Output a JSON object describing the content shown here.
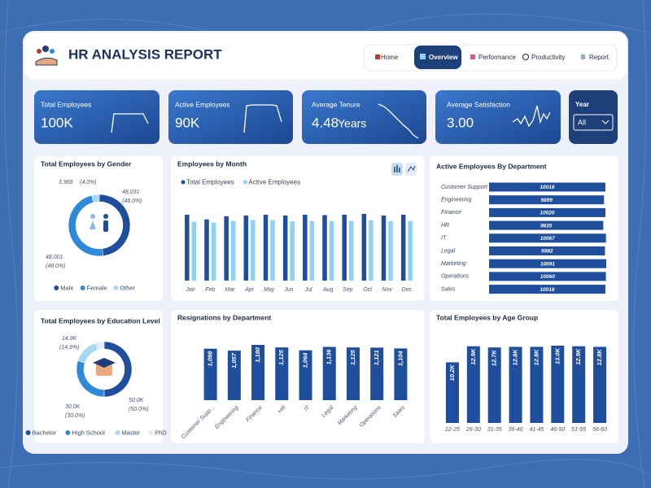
{
  "header": {
    "title": "HR ANALYSIS REPORT"
  },
  "nav": [
    "Home",
    "Overview",
    "Performance",
    "Productivity",
    "Report"
  ],
  "kpis": [
    {
      "label": "Total Employees",
      "value": "100K"
    },
    {
      "label": "Active Employees",
      "value": "90K"
    },
    {
      "label": "Average Tenure",
      "value": "4.48",
      "unit": "Years"
    },
    {
      "label": "Average Satisfaction",
      "value": "3.00"
    }
  ],
  "year_filter": {
    "label": "Year",
    "value": "All"
  },
  "chart_data": [
    {
      "type": "donut",
      "title": "Total Employees by Gender",
      "categories": [
        "Male",
        "Female",
        "Other"
      ],
      "values": [
        48031,
        48001,
        3968
      ],
      "value_labels": [
        "48,031",
        "48,001",
        "3,968"
      ],
      "percent_labels": [
        "(48.0%)",
        "(48.0%)",
        "(4.0%)"
      ],
      "colors": [
        "#1f4e9c",
        "#2e8ad8",
        "#a9d6f5"
      ],
      "legend": "bottom"
    },
    {
      "type": "bar",
      "title": "Employees by Month",
      "categories": [
        "Jan",
        "Feb",
        "Mar",
        "Apr",
        "May",
        "Jun",
        "Jul",
        "Aug",
        "Sep",
        "Oct",
        "Nov",
        "Dec"
      ],
      "series": [
        {
          "name": "Total Employees",
          "color": "#1f4e9c",
          "values": [
            8400,
            7800,
            8200,
            8300,
            8400,
            8300,
            8400,
            8350,
            8400,
            8500,
            8300,
            8400
          ]
        },
        {
          "name": "Active Employees",
          "color": "#8fd0f5",
          "values": [
            7500,
            7400,
            7600,
            7700,
            7700,
            7550,
            7600,
            7600,
            7600,
            7700,
            7600,
            7600
          ]
        }
      ],
      "legend": "top"
    },
    {
      "type": "barh",
      "title": "Active Employees By Department",
      "categories": [
        "Customer Support",
        "Engineering",
        "Finance",
        "HR",
        "IT",
        "Legal",
        "Marketing",
        "Operations",
        "Sales"
      ],
      "values": [
        10018,
        9899,
        10020,
        9835,
        10067,
        9982,
        10091,
        10060,
        10018
      ],
      "color": "#1f4e9c"
    },
    {
      "type": "donut",
      "title": "Total Employees by Education Level",
      "categories": [
        "Bachelor",
        "High School",
        "Master",
        "PhD"
      ],
      "values": [
        50000,
        30000,
        14900,
        5100
      ],
      "value_labels": [
        "50.0K",
        "30.0K",
        "14.9K",
        null
      ],
      "percent_labels": [
        "(50.0%)",
        "(30.0%)",
        "(14.9%)",
        null
      ],
      "colors": [
        "#1f4e9c",
        "#2e8ad8",
        "#a9d6f5",
        "#e4ecf7"
      ],
      "legend": "bottom"
    },
    {
      "type": "bar",
      "title": "Resignations by Department",
      "categories": [
        "Customer Supp...",
        "Engineering",
        "Finance",
        "HR",
        "IT",
        "Legal",
        "Marketing",
        "Operations",
        "Sales"
      ],
      "values": [
        1098,
        1057,
        1180,
        1125,
        1064,
        1136,
        1125,
        1121,
        1104
      ],
      "value_labels": [
        "1,098",
        "1,057",
        "1,180",
        "1,125",
        "1,064",
        "1,136",
        "1,125",
        "1,121",
        "1,104"
      ],
      "color": "#1f4e9c"
    },
    {
      "type": "bar",
      "title": "Total Employees by Age Group",
      "categories": [
        "22-25",
        "26-30",
        "31-35",
        "36-40",
        "41-45",
        "46-50",
        "51-55",
        "56-60"
      ],
      "values": [
        10200,
        12900,
        12700,
        12800,
        12800,
        13000,
        12900,
        12800
      ],
      "value_labels": [
        "10.2K",
        "12.9K",
        "12.7K",
        "12.8K",
        "12.8K",
        "13.0K",
        "12.9K",
        "12.8K"
      ],
      "color": "#1f4e9c"
    }
  ]
}
